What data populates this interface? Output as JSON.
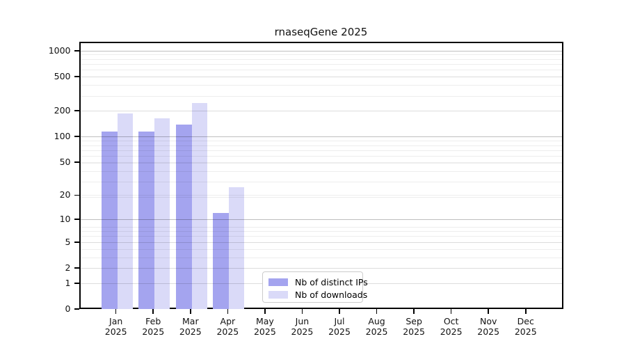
{
  "chart_data": {
    "type": "bar",
    "title": "rnaseqGene 2025",
    "scale": "log10(1+y)",
    "grid": true,
    "ylim": [
      0,
      1280
    ],
    "y_ticks": [
      0,
      1,
      2,
      5,
      10,
      20,
      50,
      100,
      200,
      500,
      1000
    ],
    "y_major_gridlines": [
      10,
      100,
      1000
    ],
    "categories": [
      {
        "month": "Jan",
        "year": "2025"
      },
      {
        "month": "Feb",
        "year": "2025"
      },
      {
        "month": "Mar",
        "year": "2025"
      },
      {
        "month": "Apr",
        "year": "2025"
      },
      {
        "month": "May",
        "year": "2025"
      },
      {
        "month": "Jun",
        "year": "2025"
      },
      {
        "month": "Jul",
        "year": "2025"
      },
      {
        "month": "Aug",
        "year": "2025"
      },
      {
        "month": "Sep",
        "year": "2025"
      },
      {
        "month": "Oct",
        "year": "2025"
      },
      {
        "month": "Nov",
        "year": "2025"
      },
      {
        "month": "Dec",
        "year": "2025"
      }
    ],
    "series": [
      {
        "name": "Nb of distinct IPs",
        "color": "#a4a4ef",
        "values": [
          115,
          115,
          137,
          12,
          0,
          0,
          0,
          0,
          0,
          0,
          0,
          0
        ]
      },
      {
        "name": "Nb of downloads",
        "color": "#dadaf8",
        "values": [
          184,
          164,
          246,
          25,
          0,
          0,
          0,
          0,
          0,
          0,
          0,
          0
        ]
      }
    ],
    "legend_position": "inside-bottom-center-left",
    "colors": {
      "axis": "#000000",
      "major_grid": "rgba(0,0,0,0.25)",
      "minor_grid": "rgba(0,0,0,0.07)",
      "background": "#ffffff"
    }
  }
}
